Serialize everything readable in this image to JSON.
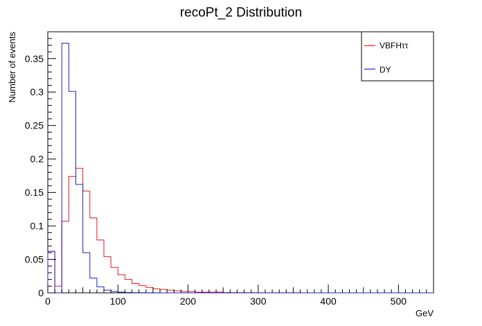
{
  "chart_data": {
    "type": "histogram",
    "title": "recoPt_2 Distribution",
    "xlabel": "GeV",
    "ylabel": "Number of events",
    "xlim": [
      0,
      550
    ],
    "ylim": [
      0,
      0.39
    ],
    "bin_width": 10,
    "x_ticks": [
      0,
      100,
      200,
      300,
      400,
      500
    ],
    "x_tick_labels": [
      "0",
      "100",
      "200",
      "300",
      "400",
      "500"
    ],
    "y_ticks": [
      0,
      0.05,
      0.1,
      0.15,
      0.2,
      0.25,
      0.3,
      0.35
    ],
    "y_tick_labels": [
      "0",
      "0.05",
      "0.1",
      "0.15",
      "0.2",
      "0.25",
      "0.3",
      "0.35"
    ],
    "grid": false,
    "legend_position": "top-right",
    "series": [
      {
        "name": "VBFHττ",
        "color": "#e8141c",
        "values": [
          0.062,
          0.01,
          0.107,
          0.174,
          0.186,
          0.152,
          0.112,
          0.079,
          0.054,
          0.038,
          0.027,
          0.02,
          0.014,
          0.011,
          0.008,
          0.006,
          0.005,
          0.004,
          0.003,
          0.002,
          0.002,
          0.001,
          0.001,
          0.001,
          0.001,
          0.0005,
          0.0004,
          0.0003,
          0.0002,
          0.0002,
          0.0001,
          0.0001,
          0.0001,
          0.0001,
          0.0001,
          0.0001,
          0,
          0,
          0,
          0,
          0,
          0,
          0,
          0,
          0,
          0,
          0,
          0,
          0,
          0,
          0,
          0,
          0,
          0,
          0
        ]
      },
      {
        "name": "DY",
        "color": "#1f1fcc",
        "values": [
          0.062,
          0.0,
          0.373,
          0.301,
          0.162,
          0.06,
          0.022,
          0.009,
          0.004,
          0.002,
          0.001,
          0.0005,
          0.0003,
          0.0002,
          0.0001,
          0.0001,
          0,
          0,
          0,
          0,
          0,
          0,
          0,
          0,
          0,
          0,
          0,
          0,
          0,
          0,
          0,
          0,
          0,
          0,
          0,
          0,
          0,
          0,
          0,
          0,
          0,
          0,
          0,
          0,
          0,
          0,
          0,
          0,
          0,
          0,
          0,
          0,
          0,
          0,
          0
        ]
      }
    ]
  }
}
